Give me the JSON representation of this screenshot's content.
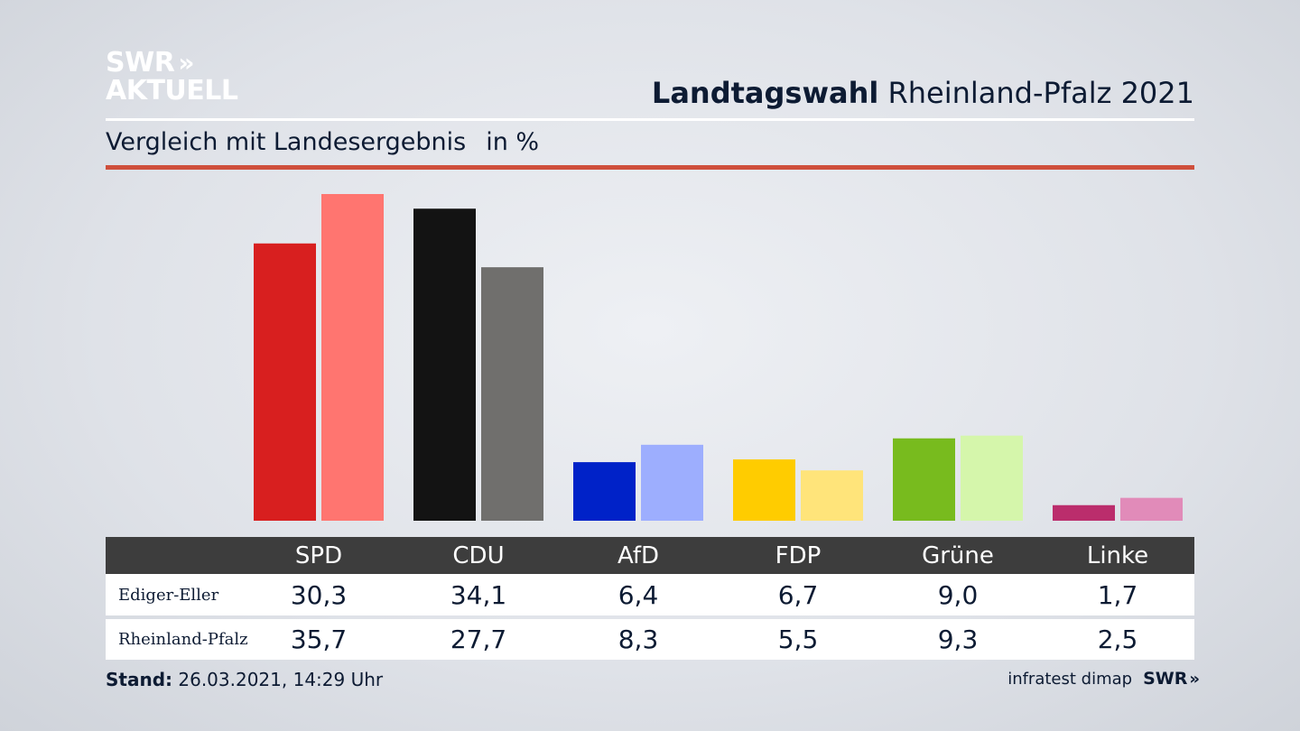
{
  "header": {
    "logo_line1": "SWR",
    "logo_chevrons": "»",
    "logo_line2": "AKTUELL",
    "title_bold": "Landtagswahl",
    "title_rest": " Rheinland-Pfalz 2021",
    "subtitle": "Vergleich mit Landesergebnis",
    "unit": "in %"
  },
  "colors": {
    "accent_red_rule": "#cf4f3c",
    "table_header": "#3d3d3d"
  },
  "chart_data": {
    "type": "bar",
    "categories": [
      "SPD",
      "CDU",
      "AfD",
      "FDP",
      "Grüne",
      "Linke"
    ],
    "series": [
      {
        "name": "Ediger-Eller",
        "values": [
          30.3,
          34.1,
          6.4,
          6.7,
          9.0,
          1.7
        ],
        "labels": [
          "30,3",
          "34,1",
          "6,4",
          "6,7",
          "9,0",
          "1,7"
        ],
        "colors": [
          "#d81f1f",
          "#131313",
          "#0022c8",
          "#ffcc00",
          "#78bb1e",
          "#bb2d6c"
        ]
      },
      {
        "name": "Rheinland-Pfalz",
        "values": [
          35.7,
          27.7,
          8.3,
          5.5,
          9.3,
          2.5
        ],
        "labels": [
          "35,7",
          "27,7",
          "8,3",
          "5,5",
          "9,3",
          "2,5"
        ],
        "colors": [
          "#ff7570",
          "#706f6d",
          "#9daefe",
          "#ffe47a",
          "#d5f6ab",
          "#e18bb9"
        ]
      }
    ],
    "ylim": [
      0,
      36
    ],
    "grid": false,
    "legend": "table-below"
  },
  "footer": {
    "stand_label": "Stand:",
    "stand_value": " 26.03.2021, 14:29 Uhr",
    "source": "infratest dimap",
    "source_brand": "SWR",
    "source_chevrons": "»"
  }
}
